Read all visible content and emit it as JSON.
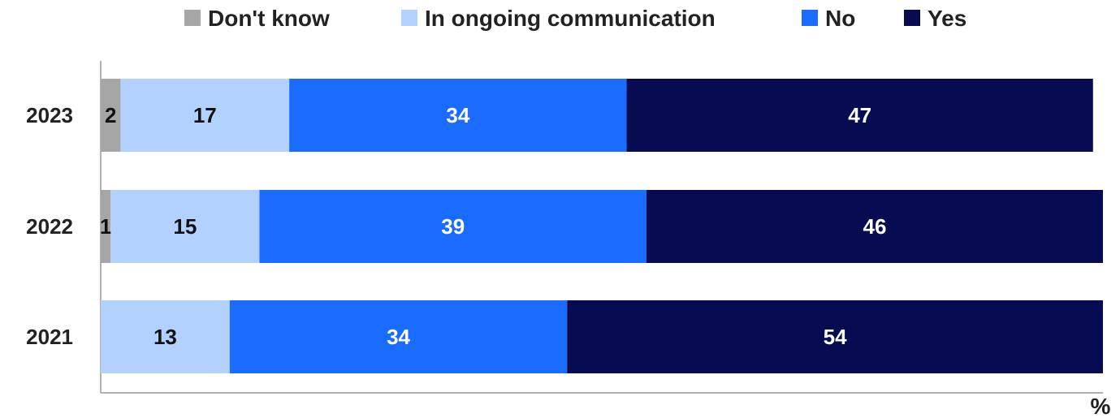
{
  "chart_data": {
    "type": "bar",
    "orientation": "horizontal",
    "stacked": true,
    "categories": [
      "2023",
      "2022",
      "2021"
    ],
    "series": [
      {
        "name": "Don't know",
        "values": [
          2,
          1,
          0
        ],
        "color": "#a6a6a6",
        "label_color": "#111111"
      },
      {
        "name": "In ongoing communication",
        "values": [
          17,
          15,
          13
        ],
        "color": "#b3d1ff",
        "label_color": "#111111"
      },
      {
        "name": "No",
        "values": [
          34,
          39,
          34
        ],
        "color": "#1a6bff",
        "label_color": "#ffffff"
      },
      {
        "name": "Yes",
        "values": [
          47,
          46,
          54
        ],
        "color": "#070b52",
        "label_color": "#ffffff"
      }
    ],
    "xlim": [
      0,
      101
    ],
    "unit_label": "%",
    "legend_position": "top",
    "grid": false,
    "axis_color": "#808080"
  }
}
